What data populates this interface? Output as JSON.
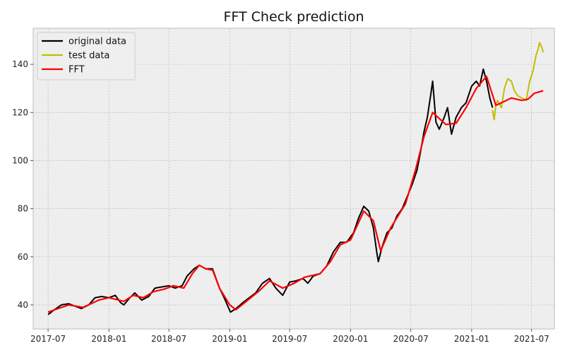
{
  "chart_data": {
    "type": "line",
    "title": "FFT Check prediction",
    "xlabel": "",
    "ylabel": "",
    "x_ticks": [
      "2017-07",
      "2018-01",
      "2018-07",
      "2019-01",
      "2019-07",
      "2020-01",
      "2020-07",
      "2021-01",
      "2021-07"
    ],
    "y_ticks": [
      "40",
      "60",
      "80",
      "100",
      "120",
      "140"
    ],
    "xlim": [
      "2017-05-17",
      "2021-09-08"
    ],
    "ylim": [
      30,
      155
    ],
    "grid": true,
    "legend_position": "top-left",
    "series": [
      {
        "name": "original data",
        "color": "#000000",
        "points": [
          [
            "2017-07-01",
            36
          ],
          [
            "2017-07-20",
            38
          ],
          [
            "2017-08-10",
            40
          ],
          [
            "2017-09-01",
            40.5
          ],
          [
            "2017-09-20",
            39.5
          ],
          [
            "2017-10-10",
            38.5
          ],
          [
            "2017-11-01",
            40
          ],
          [
            "2017-11-20",
            43
          ],
          [
            "2017-12-10",
            43.5
          ],
          [
            "2018-01-01",
            43
          ],
          [
            "2018-01-20",
            44
          ],
          [
            "2018-02-05",
            41
          ],
          [
            "2018-02-15",
            40
          ],
          [
            "2018-03-05",
            43
          ],
          [
            "2018-03-20",
            45
          ],
          [
            "2018-04-10",
            42
          ],
          [
            "2018-05-01",
            43.5
          ],
          [
            "2018-05-20",
            47
          ],
          [
            "2018-06-10",
            47.5
          ],
          [
            "2018-07-01",
            48
          ],
          [
            "2018-07-20",
            47
          ],
          [
            "2018-08-10",
            48
          ],
          [
            "2018-08-25",
            52
          ],
          [
            "2018-09-15",
            55
          ],
          [
            "2018-10-01",
            56.5
          ],
          [
            "2018-10-20",
            55
          ],
          [
            "2018-11-10",
            55
          ],
          [
            "2018-12-01",
            47
          ],
          [
            "2018-12-15",
            43
          ],
          [
            "2019-01-03",
            37
          ],
          [
            "2019-01-20",
            38.5
          ],
          [
            "2019-02-10",
            41
          ],
          [
            "2019-03-01",
            43
          ],
          [
            "2019-03-20",
            45
          ],
          [
            "2019-04-10",
            49
          ],
          [
            "2019-05-01",
            51
          ],
          [
            "2019-05-20",
            47
          ],
          [
            "2019-06-10",
            44
          ],
          [
            "2019-07-01",
            49.5
          ],
          [
            "2019-07-20",
            50
          ],
          [
            "2019-08-10",
            51
          ],
          [
            "2019-08-25",
            49
          ],
          [
            "2019-09-10",
            52
          ],
          [
            "2019-10-01",
            53
          ],
          [
            "2019-10-20",
            56
          ],
          [
            "2019-11-10",
            62
          ],
          [
            "2019-12-01",
            66
          ],
          [
            "2019-12-20",
            66
          ],
          [
            "2020-01-10",
            70
          ],
          [
            "2020-01-25",
            76
          ],
          [
            "2020-02-10",
            81
          ],
          [
            "2020-02-25",
            79
          ],
          [
            "2020-03-10",
            72
          ],
          [
            "2020-03-20",
            62
          ],
          [
            "2020-03-25",
            58
          ],
          [
            "2020-04-05",
            64
          ],
          [
            "2020-04-20",
            70
          ],
          [
            "2020-05-05",
            72
          ],
          [
            "2020-05-20",
            77
          ],
          [
            "2020-06-05",
            80
          ],
          [
            "2020-06-20",
            85
          ],
          [
            "2020-07-05",
            90
          ],
          [
            "2020-07-20",
            96
          ],
          [
            "2020-07-31",
            104
          ],
          [
            "2020-08-10",
            112
          ],
          [
            "2020-08-20",
            118
          ],
          [
            "2020-08-31",
            128
          ],
          [
            "2020-09-05",
            133
          ],
          [
            "2020-09-15",
            116
          ],
          [
            "2020-09-25",
            113
          ],
          [
            "2020-10-10",
            118
          ],
          [
            "2020-10-20",
            122
          ],
          [
            "2020-11-01",
            111
          ],
          [
            "2020-11-15",
            118
          ],
          [
            "2020-12-01",
            122
          ],
          [
            "2020-12-15",
            124
          ],
          [
            "2021-01-01",
            131
          ],
          [
            "2021-01-15",
            133
          ],
          [
            "2021-01-25",
            131
          ],
          [
            "2021-02-05",
            138
          ],
          [
            "2021-02-15",
            133
          ],
          [
            "2021-02-25",
            126
          ],
          [
            "2021-03-05",
            122
          ]
        ]
      },
      {
        "name": "test data",
        "color": "#bfbf00",
        "points": [
          [
            "2021-03-05",
            121
          ],
          [
            "2021-03-10",
            117
          ],
          [
            "2021-03-15",
            123
          ],
          [
            "2021-03-20",
            125
          ],
          [
            "2021-04-01",
            122
          ],
          [
            "2021-04-10",
            130
          ],
          [
            "2021-04-20",
            134
          ],
          [
            "2021-05-01",
            133
          ],
          [
            "2021-05-10",
            129
          ],
          [
            "2021-05-20",
            127
          ],
          [
            "2021-06-01",
            126
          ],
          [
            "2021-06-15",
            125
          ],
          [
            "2021-06-25",
            133
          ],
          [
            "2021-07-05",
            137
          ],
          [
            "2021-07-15",
            144
          ],
          [
            "2021-07-20",
            146
          ],
          [
            "2021-07-25",
            149
          ],
          [
            "2021-08-01",
            147
          ],
          [
            "2021-08-05",
            145
          ]
        ]
      },
      {
        "name": "FFT",
        "color": "#ff0000",
        "points": [
          [
            "2017-07-01",
            37
          ],
          [
            "2017-08-01",
            38.5
          ],
          [
            "2017-09-01",
            40
          ],
          [
            "2017-10-15",
            39
          ],
          [
            "2017-12-01",
            42
          ],
          [
            "2018-01-01",
            43
          ],
          [
            "2018-02-15",
            41.5
          ],
          [
            "2018-03-15",
            44
          ],
          [
            "2018-04-15",
            43
          ],
          [
            "2018-05-15",
            45.5
          ],
          [
            "2018-06-15",
            46.5
          ],
          [
            "2018-07-15",
            48
          ],
          [
            "2018-08-15",
            47
          ],
          [
            "2018-09-10",
            53
          ],
          [
            "2018-10-01",
            56.5
          ],
          [
            "2018-10-20",
            55
          ],
          [
            "2018-11-10",
            54.5
          ],
          [
            "2018-12-01",
            47
          ],
          [
            "2019-01-01",
            40
          ],
          [
            "2019-01-20",
            38
          ],
          [
            "2019-03-01",
            42.5
          ],
          [
            "2019-04-01",
            46
          ],
          [
            "2019-05-01",
            50
          ],
          [
            "2019-06-10",
            47
          ],
          [
            "2019-07-15",
            49
          ],
          [
            "2019-08-15",
            51.5
          ],
          [
            "2019-10-01",
            53
          ],
          [
            "2019-11-01",
            58
          ],
          [
            "2019-12-01",
            65
          ],
          [
            "2020-01-01",
            67
          ],
          [
            "2020-02-10",
            79
          ],
          [
            "2020-03-10",
            75
          ],
          [
            "2020-04-01",
            62.5
          ],
          [
            "2020-05-01",
            72
          ],
          [
            "2020-06-15",
            82
          ],
          [
            "2020-07-15",
            96
          ],
          [
            "2020-08-10",
            110
          ],
          [
            "2020-09-05",
            120
          ],
          [
            "2020-10-15",
            115
          ],
          [
            "2020-11-15",
            115.5
          ],
          [
            "2020-12-15",
            122
          ],
          [
            "2021-01-15",
            130
          ],
          [
            "2021-02-15",
            135
          ],
          [
            "2021-03-15",
            123
          ],
          [
            "2021-04-01",
            124
          ],
          [
            "2021-05-01",
            126
          ],
          [
            "2021-06-01",
            125
          ],
          [
            "2021-06-20",
            125.5
          ],
          [
            "2021-07-10",
            128
          ],
          [
            "2021-08-05",
            129
          ]
        ]
      }
    ]
  }
}
